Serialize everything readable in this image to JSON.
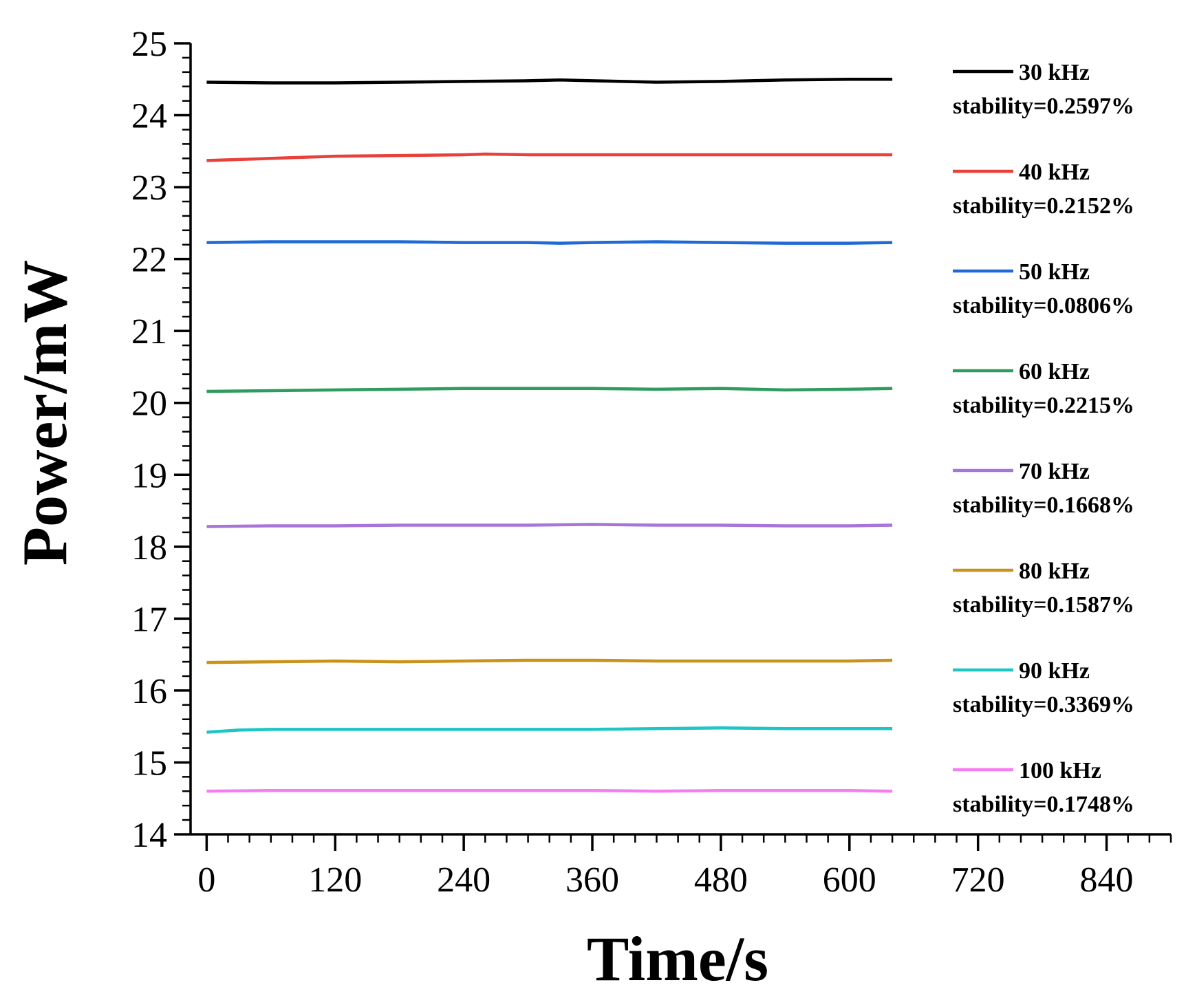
{
  "chart_data": {
    "type": "line",
    "title": "",
    "xlabel": "Time/s",
    "ylabel": "Power/mW",
    "xlim": [
      -15,
      900
    ],
    "ylim": [
      14,
      25
    ],
    "xticks": [
      0,
      120,
      240,
      360,
      480,
      600,
      720,
      840
    ],
    "yticks": [
      14,
      15,
      16,
      17,
      18,
      19,
      20,
      21,
      22,
      23,
      24,
      25
    ],
    "x_minor_step": 20,
    "y_minor_step": 0.2,
    "legend_position": "right",
    "series": [
      {
        "name": "30 kHz",
        "stability": "stability=0.2597%",
        "color": "#000000",
        "x": [
          0,
          60,
          120,
          180,
          240,
          300,
          330,
          360,
          420,
          480,
          540,
          600,
          640
        ],
        "y": [
          24.46,
          24.45,
          24.45,
          24.46,
          24.47,
          24.48,
          24.49,
          24.48,
          24.46,
          24.47,
          24.49,
          24.5,
          24.5
        ]
      },
      {
        "name": "40 kHz",
        "stability": "stability=0.2152%",
        "color": "#e8413c",
        "x": [
          0,
          60,
          120,
          180,
          240,
          260,
          300,
          360,
          420,
          480,
          540,
          600,
          640
        ],
        "y": [
          23.37,
          23.4,
          23.43,
          23.44,
          23.45,
          23.46,
          23.45,
          23.45,
          23.45,
          23.45,
          23.45,
          23.45,
          23.45
        ]
      },
      {
        "name": "50 kHz",
        "stability": "stability=0.0806%",
        "color": "#1f6ad4",
        "x": [
          0,
          60,
          120,
          180,
          240,
          300,
          330,
          360,
          420,
          480,
          540,
          600,
          640
        ],
        "y": [
          22.23,
          22.24,
          22.24,
          22.24,
          22.23,
          22.23,
          22.22,
          22.23,
          22.24,
          22.23,
          22.22,
          22.22,
          22.23
        ]
      },
      {
        "name": "60 kHz",
        "stability": "stability=0.2215%",
        "color": "#2e9b5f",
        "x": [
          0,
          60,
          120,
          180,
          240,
          300,
          360,
          420,
          480,
          540,
          600,
          640
        ],
        "y": [
          20.16,
          20.17,
          20.18,
          20.19,
          20.2,
          20.2,
          20.2,
          20.19,
          20.2,
          20.18,
          20.19,
          20.2
        ]
      },
      {
        "name": "70 kHz",
        "stability": "stability=0.1668%",
        "color": "#a874d8",
        "x": [
          0,
          60,
          120,
          180,
          240,
          300,
          360,
          420,
          480,
          540,
          600,
          640
        ],
        "y": [
          18.28,
          18.29,
          18.29,
          18.3,
          18.3,
          18.3,
          18.31,
          18.3,
          18.3,
          18.29,
          18.29,
          18.3
        ]
      },
      {
        "name": "80 kHz",
        "stability": "stability=0.1587%",
        "color": "#c9921a",
        "x": [
          0,
          60,
          120,
          180,
          240,
          300,
          360,
          420,
          480,
          540,
          600,
          640
        ],
        "y": [
          16.39,
          16.4,
          16.41,
          16.4,
          16.41,
          16.42,
          16.42,
          16.41,
          16.41,
          16.41,
          16.41,
          16.42
        ]
      },
      {
        "name": "90 kHz",
        "stability": "stability=0.3369%",
        "color": "#1cc6c4",
        "x": [
          0,
          30,
          60,
          120,
          180,
          240,
          300,
          360,
          420,
          480,
          540,
          600,
          640
        ],
        "y": [
          15.42,
          15.45,
          15.46,
          15.46,
          15.46,
          15.46,
          15.46,
          15.46,
          15.47,
          15.48,
          15.47,
          15.47,
          15.47
        ]
      },
      {
        "name": "100 kHz",
        "stability": "stability=0.1748%",
        "color": "#f47ef0",
        "x": [
          0,
          60,
          120,
          180,
          240,
          300,
          360,
          420,
          480,
          540,
          600,
          640
        ],
        "y": [
          14.6,
          14.61,
          14.61,
          14.61,
          14.61,
          14.61,
          14.61,
          14.6,
          14.61,
          14.61,
          14.61,
          14.6
        ]
      }
    ]
  }
}
